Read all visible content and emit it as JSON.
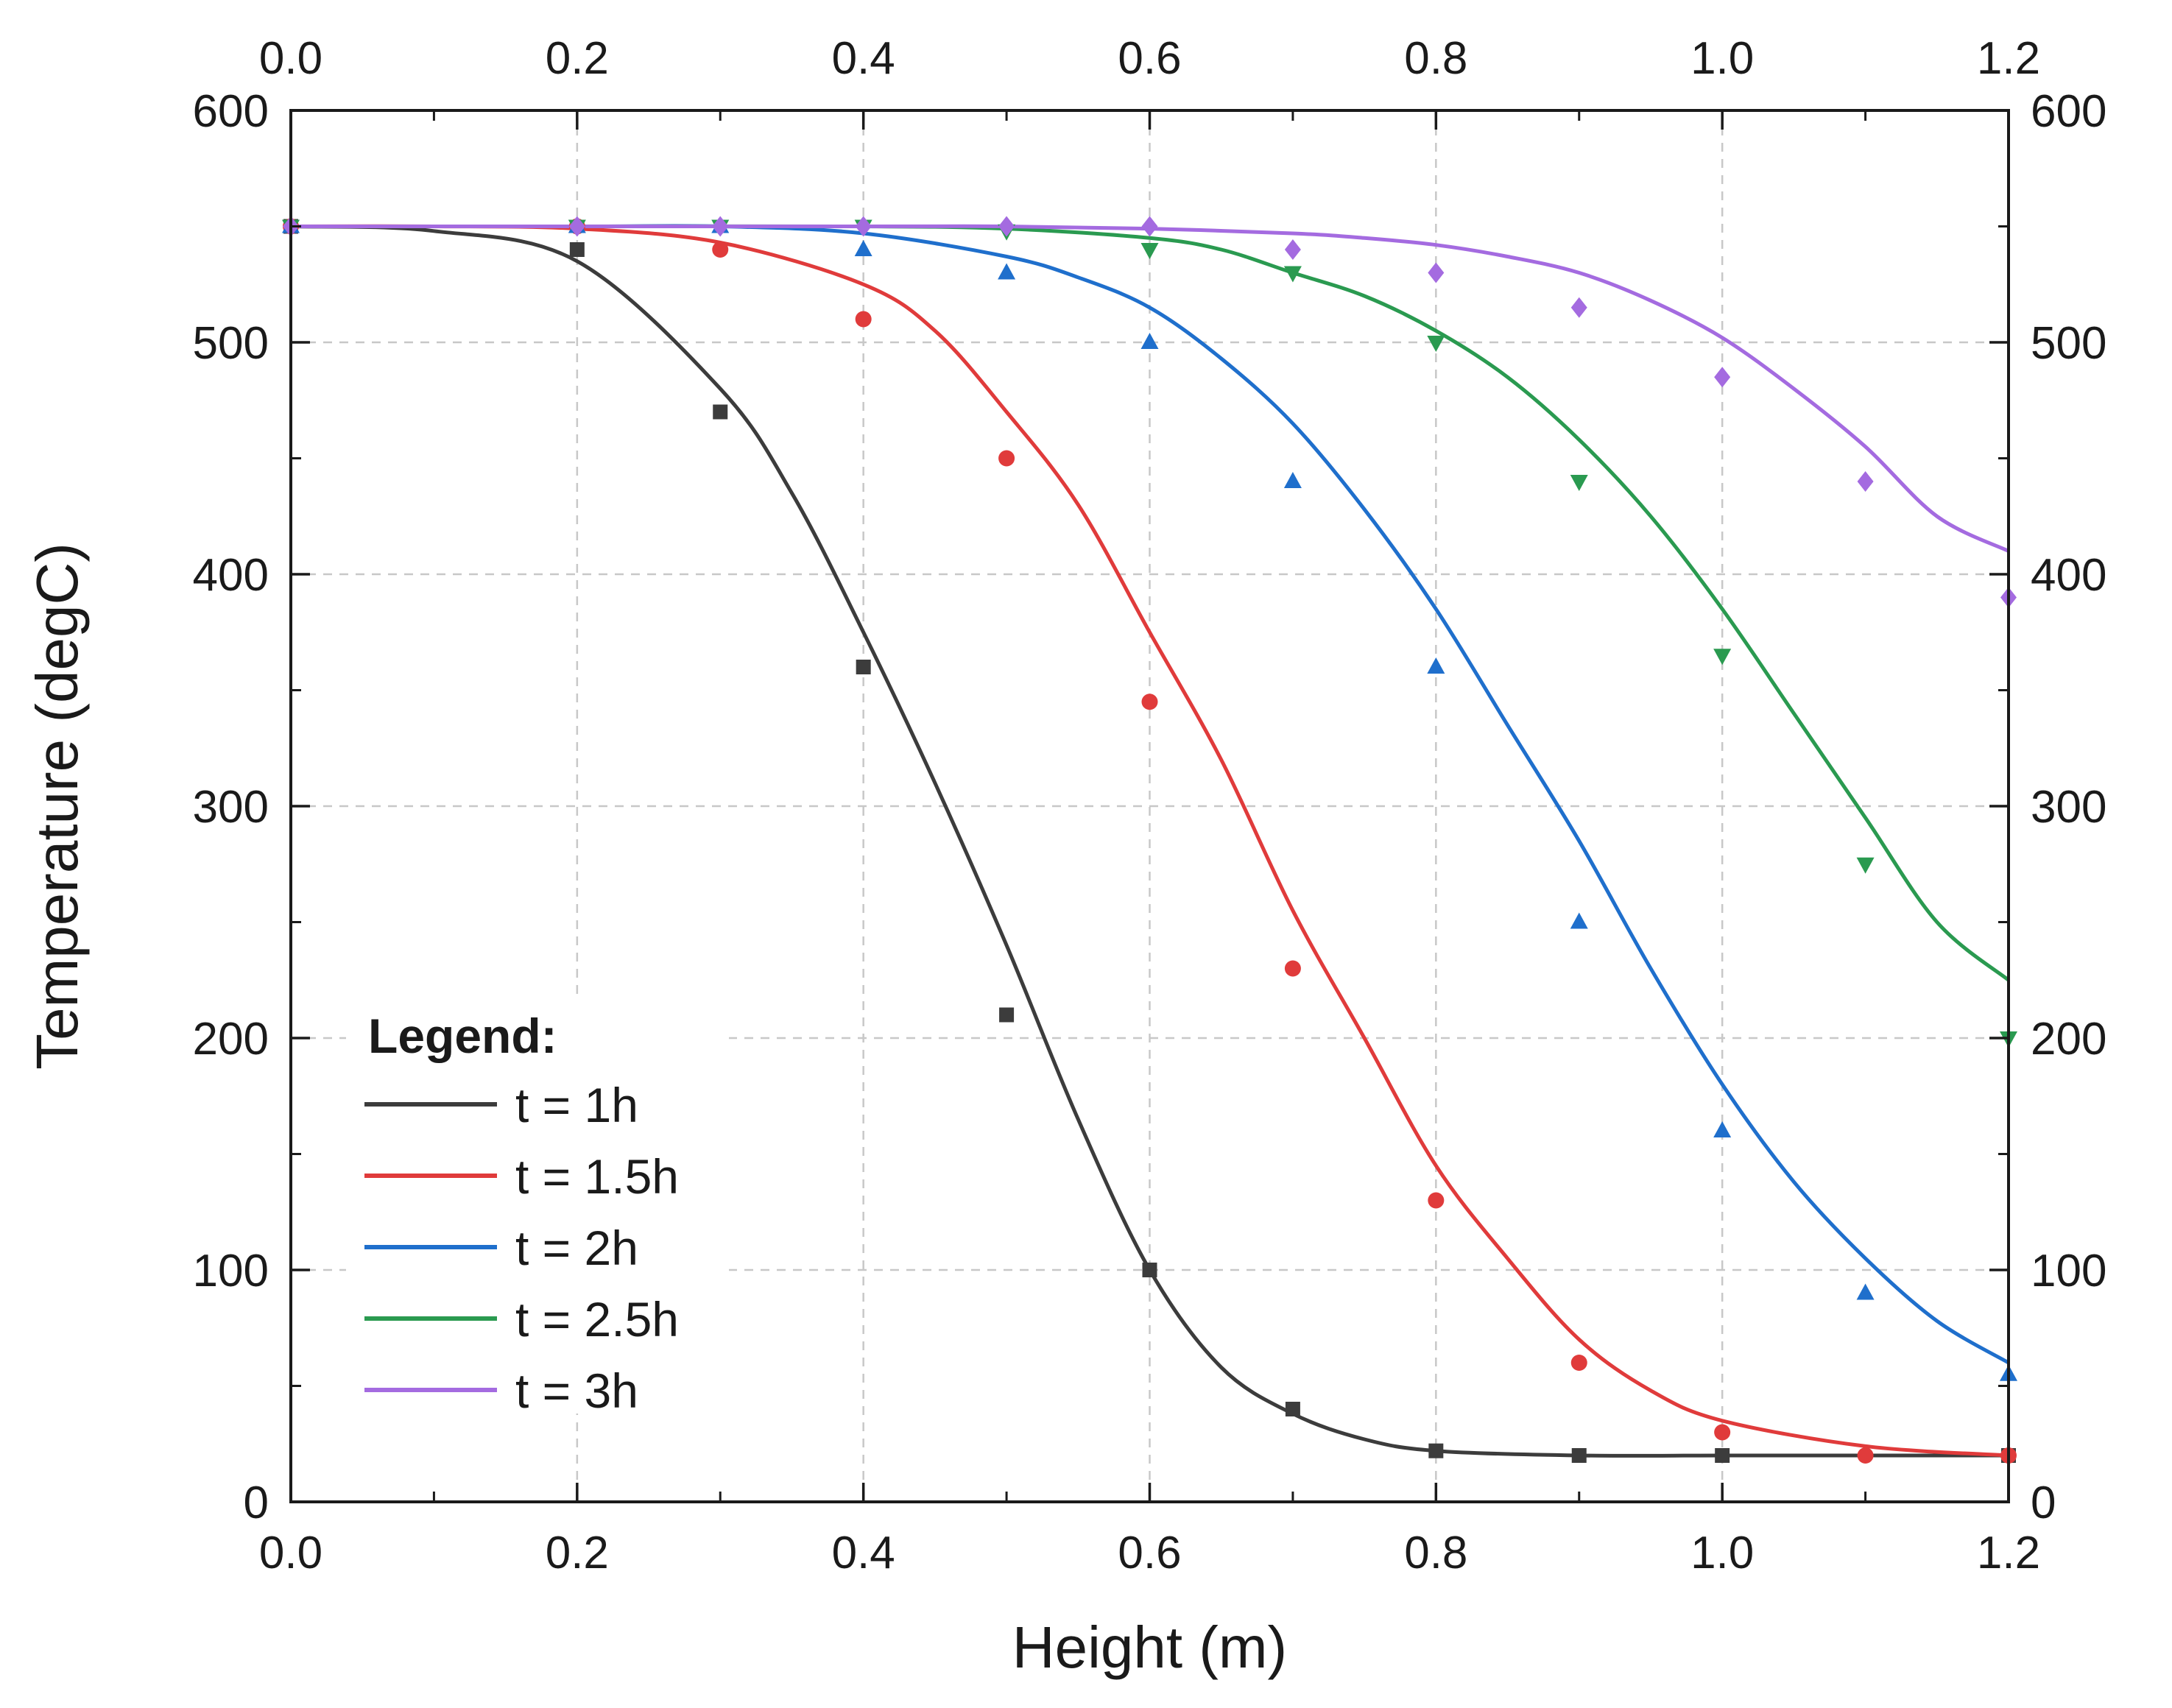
{
  "chart_data": {
    "type": "line",
    "title": "",
    "xlabel": "Height (m)",
    "ylabel": "Temperature (degC)",
    "xlim": [
      0.0,
      1.2
    ],
    "ylim": [
      0,
      600
    ],
    "x_ticks": [
      "0.0",
      "0.2",
      "0.4",
      "0.6",
      "0.8",
      "1.0",
      "1.2"
    ],
    "y_ticks": [
      "0",
      "100",
      "200",
      "300",
      "400",
      "500",
      "600"
    ],
    "grid": true,
    "legend_title": "Legend:",
    "legend_position": "bottom-left",
    "series": [
      {
        "name": "t = 1h",
        "color": "#3c3c3c",
        "marker": "square",
        "points_x": [
          0.0,
          0.2,
          0.3,
          0.4,
          0.5,
          0.6,
          0.7,
          0.8,
          0.9,
          1.0,
          1.2
        ],
        "points_y": [
          550,
          540,
          470,
          360,
          210,
          100,
          40,
          22,
          20,
          20,
          20
        ],
        "curve_x": [
          0.0,
          0.1,
          0.2,
          0.3,
          0.35,
          0.4,
          0.45,
          0.5,
          0.55,
          0.6,
          0.65,
          0.7,
          0.75,
          0.8,
          0.9,
          1.0,
          1.1,
          1.2
        ],
        "curve_y": [
          550,
          548,
          535,
          480,
          435,
          375,
          310,
          240,
          165,
          100,
          58,
          38,
          27,
          22,
          20,
          20,
          20,
          20
        ]
      },
      {
        "name": "t = 1.5h",
        "color": "#e03b3b",
        "marker": "circle",
        "points_x": [
          0.0,
          0.2,
          0.3,
          0.4,
          0.5,
          0.6,
          0.7,
          0.8,
          0.9,
          1.0,
          1.1,
          1.2
        ],
        "points_y": [
          550,
          550,
          540,
          510,
          450,
          345,
          230,
          130,
          60,
          30,
          20,
          20
        ],
        "curve_x": [
          0.0,
          0.1,
          0.2,
          0.3,
          0.4,
          0.45,
          0.5,
          0.55,
          0.6,
          0.65,
          0.7,
          0.75,
          0.8,
          0.85,
          0.9,
          0.95,
          1.0,
          1.1,
          1.2
        ],
        "curve_y": [
          550,
          550,
          549,
          543,
          525,
          505,
          470,
          430,
          375,
          320,
          255,
          200,
          145,
          105,
          70,
          48,
          35,
          24,
          20
        ]
      },
      {
        "name": "t = 2h",
        "color": "#1f6fcc",
        "marker": "triangle-up",
        "points_x": [
          0.0,
          0.2,
          0.3,
          0.4,
          0.5,
          0.6,
          0.7,
          0.8,
          0.9,
          1.0,
          1.1,
          1.2
        ],
        "points_y": [
          550,
          550,
          550,
          540,
          530,
          500,
          440,
          360,
          250,
          160,
          90,
          55
        ],
        "curve_x": [
          0.0,
          0.2,
          0.3,
          0.4,
          0.5,
          0.55,
          0.6,
          0.65,
          0.7,
          0.75,
          0.8,
          0.85,
          0.9,
          0.95,
          1.0,
          1.05,
          1.1,
          1.15,
          1.2
        ],
        "curve_y": [
          550,
          550,
          550,
          547,
          537,
          528,
          515,
          493,
          465,
          428,
          385,
          335,
          285,
          230,
          180,
          138,
          105,
          78,
          60
        ]
      },
      {
        "name": "t = 2.5h",
        "color": "#2a9a50",
        "marker": "triangle-down",
        "points_x": [
          0.0,
          0.2,
          0.3,
          0.4,
          0.5,
          0.6,
          0.7,
          0.8,
          0.9,
          1.0,
          1.1,
          1.2
        ],
        "points_y": [
          550,
          550,
          550,
          550,
          548,
          540,
          530,
          500,
          440,
          365,
          275,
          200
        ],
        "curve_x": [
          0.0,
          0.2,
          0.4,
          0.5,
          0.6,
          0.65,
          0.7,
          0.75,
          0.8,
          0.85,
          0.9,
          0.95,
          1.0,
          1.05,
          1.1,
          1.15,
          1.2
        ],
        "curve_y": [
          550,
          550,
          550,
          549,
          545,
          540,
          530,
          520,
          505,
          485,
          458,
          425,
          385,
          340,
          295,
          250,
          225
        ]
      },
      {
        "name": "t = 3h",
        "color": "#a46be0",
        "marker": "diamond",
        "points_x": [
          0.0,
          0.2,
          0.3,
          0.4,
          0.5,
          0.6,
          0.7,
          0.8,
          0.9,
          1.0,
          1.1,
          1.2
        ],
        "points_y": [
          550,
          550,
          550,
          550,
          550,
          550,
          540,
          530,
          515,
          485,
          440,
          390
        ],
        "curve_x": [
          0.0,
          0.2,
          0.4,
          0.5,
          0.6,
          0.7,
          0.75,
          0.8,
          0.85,
          0.9,
          0.95,
          1.0,
          1.05,
          1.1,
          1.15,
          1.2
        ],
        "curve_y": [
          550,
          550,
          550,
          550,
          549,
          547,
          545,
          542,
          537,
          530,
          518,
          502,
          480,
          455,
          425,
          410
        ]
      }
    ]
  }
}
